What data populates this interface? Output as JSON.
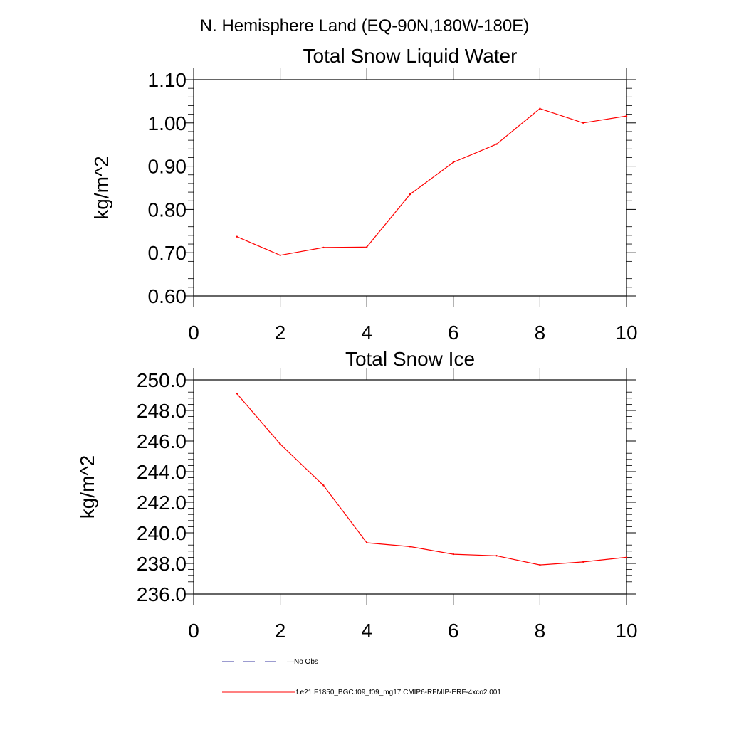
{
  "figure": {
    "title": "N. Hemisphere Land (EQ-90N,180W-180E)"
  },
  "chart_data": [
    {
      "type": "line",
      "title": "Total Snow Liquid Water",
      "xlabel": "",
      "ylabel": "kg/m^2",
      "xlim": [
        0,
        10
      ],
      "ylim": [
        0.6,
        1.1
      ],
      "x_ticks": [
        0,
        2,
        4,
        6,
        8,
        10
      ],
      "x_tick_labels": [
        "0",
        "2",
        "4",
        "6",
        "8",
        "10"
      ],
      "y_ticks": [
        0.6,
        0.7,
        0.8,
        0.9,
        1.0,
        1.1
      ],
      "y_tick_labels": [
        "0.60",
        "0.70",
        "0.80",
        "0.90",
        "1.00",
        "1.10"
      ],
      "grid": false,
      "series": [
        {
          "name": "f.e21.F1850_BGC.f09_f09_mg17.CMIP6-RFMIP-ERF-4xco2.001",
          "color": "#ff0000",
          "x": [
            1,
            2,
            3,
            4,
            5,
            6,
            7,
            8,
            9,
            10
          ],
          "y": [
            0.737,
            0.694,
            0.712,
            0.713,
            0.835,
            0.909,
            0.951,
            1.033,
            1.0,
            1.016
          ]
        }
      ]
    },
    {
      "type": "line",
      "title": "Total Snow Ice",
      "xlabel": "",
      "ylabel": "kg/m^2",
      "xlim": [
        0,
        10
      ],
      "ylim": [
        236.0,
        250.0
      ],
      "x_ticks": [
        0,
        2,
        4,
        6,
        8,
        10
      ],
      "x_tick_labels": [
        "0",
        "2",
        "4",
        "6",
        "8",
        "10"
      ],
      "y_ticks": [
        236,
        238,
        240,
        242,
        244,
        246,
        248,
        250
      ],
      "y_tick_labels": [
        "236.0",
        "238.0",
        "240.0",
        "242.0",
        "244.0",
        "246.0",
        "248.0",
        "250.0"
      ],
      "grid": false,
      "series": [
        {
          "name": "f.e21.F1850_BGC.f09_f09_mg17.CMIP6-RFMIP-ERF-4xco2.001",
          "color": "#ff0000",
          "x": [
            1,
            2,
            3,
            4,
            5,
            6,
            7,
            8,
            9,
            10
          ],
          "y": [
            249.1,
            245.8,
            243.1,
            239.35,
            239.1,
            238.6,
            238.5,
            237.9,
            238.1,
            238.4
          ]
        }
      ]
    }
  ],
  "legend": {
    "placement": "bottom",
    "entries": [
      {
        "label": "No Obs",
        "color": "#3a3aa0",
        "style": "dashed"
      },
      {
        "label": "f.e21.F1850_BGC.f09_f09_mg17.CMIP6-RFMIP-ERF-4xco2.001",
        "color": "#ff0000",
        "style": "solid"
      }
    ]
  }
}
